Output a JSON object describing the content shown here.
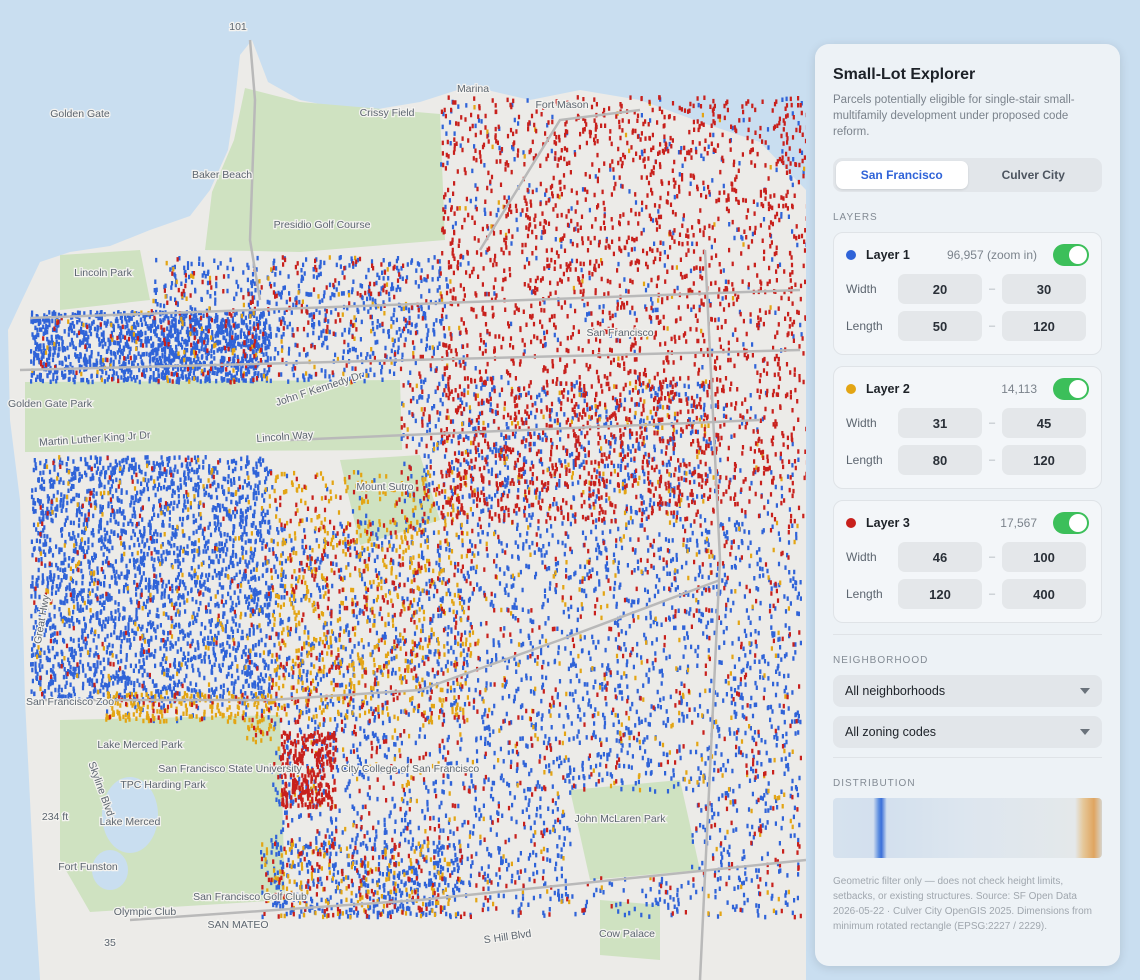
{
  "map_labels": [
    "101",
    "Golden Gate",
    "Marina",
    "Fort Mason",
    "Crissy Field",
    "Lincoln Park",
    "Baker Beach",
    "Presidio Golf Course",
    "Golden Gate Park",
    "Martin Luther King Jr Dr",
    "Lincoln Way",
    "John F Kennedy Dr",
    "San Francisco",
    "Mount Sutro",
    "Great Hwy",
    "San Francisco Zoo",
    "Lake Merced Park",
    "TPC Harding Park",
    "Lake Merced",
    "San Francisco State University",
    "City College of San Francisco",
    "John McLaren Park",
    "Skyline Blvd",
    "234 ft",
    "Fort Funston",
    "Olympic Club",
    "San Francisco Golf Club",
    "SAN MATEO",
    "S Hill Blvd",
    "Cow Palace",
    "35"
  ],
  "panel": {
    "title": "Small-Lot Explorer",
    "description": "Parcels potentially eligible for single-stair small-multifamily development under proposed code reform.",
    "tabs": [
      "San Francisco",
      "Culver City"
    ],
    "layers_heading": "LAYERS",
    "layers": [
      {
        "name": "Layer 1",
        "count": "96,957 (zoom in)",
        "color": "#2f63d8",
        "enabled": true,
        "width": {
          "label": "Width",
          "min": 20,
          "max": 30
        },
        "length": {
          "label": "Length",
          "min": 50,
          "max": 120
        }
      },
      {
        "name": "Layer 2",
        "count": "14,113",
        "color": "#e3a514",
        "enabled": true,
        "width": {
          "label": "Width",
          "min": 31,
          "max": 45
        },
        "length": {
          "label": "Length",
          "min": 80,
          "max": 120
        }
      },
      {
        "name": "Layer 3",
        "count": "17,567",
        "color": "#c8201c",
        "enabled": true,
        "width": {
          "label": "Width",
          "min": 46,
          "max": 100
        },
        "length": {
          "label": "Length",
          "min": 120,
          "max": 400
        }
      }
    ],
    "neighborhood_heading": "NEIGHBORHOOD",
    "selects": [
      "All neighborhoods",
      "All zoning codes"
    ],
    "distribution_heading": "DISTRIBUTION",
    "footnote": "Geometric filter only — does not check height limits, setbacks, or existing structures. Source: SF Open Data 2026-05-22 · Culver City OpenGIS 2025. Dimensions from minimum rotated rectangle (EPSG:2227 / 2229)."
  }
}
